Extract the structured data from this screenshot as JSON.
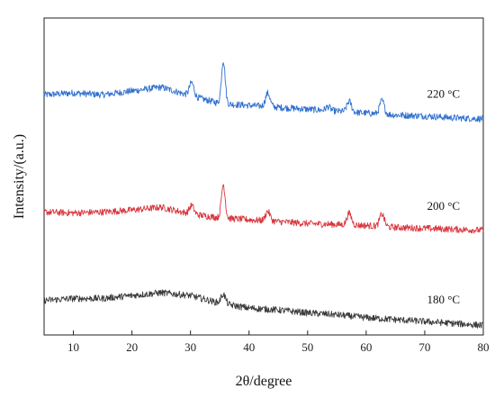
{
  "chart_data": {
    "type": "line",
    "xlabel": "2θ/degree",
    "ylabel": "Intensity/(a.u.)",
    "xlim": [
      5,
      80
    ],
    "ylim": [
      0,
      330
    ],
    "grid": false,
    "legend": "inline labels at right end of each trace",
    "x_ticks": [
      10,
      20,
      30,
      40,
      50,
      60,
      70,
      80
    ],
    "y_ticks_shown": false,
    "series": [
      {
        "name": "220 °C",
        "color": "#2f6fcf",
        "baseline": [
          [
            5,
            250
          ],
          [
            10,
            252
          ],
          [
            15,
            250
          ],
          [
            20,
            254
          ],
          [
            25,
            258
          ],
          [
            30,
            249
          ],
          [
            35,
            241
          ],
          [
            40,
            239
          ],
          [
            45,
            237
          ],
          [
            50,
            235
          ],
          [
            55,
            233
          ],
          [
            60,
            231
          ],
          [
            65,
            229
          ],
          [
            70,
            228
          ],
          [
            75,
            226
          ],
          [
            80,
            225
          ]
        ],
        "peaks": [
          {
            "x": 30.2,
            "height": 14
          },
          {
            "x": 35.6,
            "height": 45
          },
          {
            "x": 43.2,
            "height": 14
          },
          {
            "x": 53.5,
            "height": 4
          },
          {
            "x": 57.1,
            "height": 11
          },
          {
            "x": 62.7,
            "height": 14
          }
        ]
      },
      {
        "name": "200 °C",
        "color": "#d9363e",
        "baseline": [
          [
            5,
            128
          ],
          [
            10,
            127
          ],
          [
            15,
            128
          ],
          [
            20,
            130
          ],
          [
            25,
            133
          ],
          [
            30,
            126
          ],
          [
            35,
            122
          ],
          [
            40,
            120
          ],
          [
            45,
            118
          ],
          [
            50,
            116
          ],
          [
            55,
            115
          ],
          [
            60,
            114
          ],
          [
            65,
            112
          ],
          [
            70,
            111
          ],
          [
            75,
            110
          ],
          [
            80,
            109
          ]
        ],
        "peaks": [
          {
            "x": 30.2,
            "height": 9
          },
          {
            "x": 35.6,
            "height": 35
          },
          {
            "x": 43.2,
            "height": 10
          },
          {
            "x": 57.1,
            "height": 12
          },
          {
            "x": 62.7,
            "height": 13
          }
        ]
      },
      {
        "name": "180 °C",
        "color": "#3a3a3a",
        "baseline": [
          [
            5,
            36
          ],
          [
            10,
            38
          ],
          [
            15,
            38
          ],
          [
            20,
            41
          ],
          [
            25,
            44
          ],
          [
            30,
            41
          ],
          [
            35,
            33
          ],
          [
            40,
            28
          ],
          [
            45,
            26
          ],
          [
            50,
            23
          ],
          [
            55,
            21
          ],
          [
            60,
            18
          ],
          [
            65,
            16
          ],
          [
            70,
            14
          ],
          [
            75,
            12
          ],
          [
            80,
            10
          ]
        ],
        "peaks": [
          {
            "x": 35.6,
            "height": 10
          }
        ]
      }
    ]
  }
}
